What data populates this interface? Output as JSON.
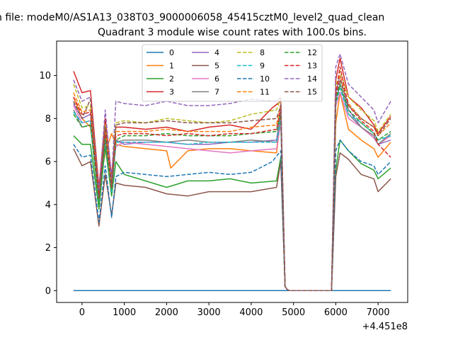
{
  "chart_data": {
    "type": "line",
    "suptitle": "n file: modeM0/AS1A13_038T03_9000006058_45415cztM0_level2_quad_clean",
    "title": "Quadrant 3 module wise count rates with 100.0s bins.",
    "xlabel": "",
    "ylabel": "",
    "x_offset_label": "+4.451e8",
    "xlim": [
      -600,
      7700
    ],
    "ylim": [
      -0.55,
      11.6
    ],
    "xticks": [
      0,
      1000,
      2000,
      3000,
      4000,
      5000,
      6000,
      7000
    ],
    "yticks": [
      0,
      2,
      4,
      6,
      8,
      10
    ],
    "grid": false,
    "legend": {
      "placement": "top-center",
      "columns": 4
    },
    "series": [
      {
        "name": "0",
        "color": "#1f77b4",
        "dash": "solid",
        "x": [
          -200,
          7300
        ],
        "y": [
          0,
          0
        ]
      },
      {
        "name": "1",
        "color": "#ff7f0e",
        "dash": "solid",
        "x": [
          -200,
          0,
          200,
          400,
          550,
          700,
          800,
          1000,
          1500,
          2000,
          2100,
          2500,
          3000,
          3500,
          4000,
          4600,
          4700,
          4800,
          4850,
          4900,
          5500,
          5900,
          6000,
          6100,
          6300,
          6600,
          6900,
          7000,
          7300
        ],
        "y": [
          9.0,
          8.0,
          7.6,
          4.8,
          6.4,
          7.3,
          6.8,
          6.7,
          6.6,
          6.5,
          5.7,
          6.5,
          6.6,
          6.6,
          6.5,
          6.4,
          8.0,
          0.2,
          0.05,
          0,
          0,
          0,
          7.8,
          9.2,
          7.5,
          7.0,
          6.6,
          6.2,
          6.9
        ]
      },
      {
        "name": "2",
        "color": "#2ca02c",
        "dash": "solid",
        "x": [
          -200,
          0,
          200,
          400,
          550,
          700,
          800,
          1000,
          1500,
          2000,
          2500,
          3000,
          3500,
          4000,
          4600,
          4700,
          4800,
          4850,
          4900,
          5500,
          5900,
          6000,
          6100,
          6300,
          6600,
          6900,
          7000,
          7300
        ],
        "y": [
          7.2,
          6.8,
          6.8,
          3.8,
          6.7,
          4.4,
          6.0,
          5.4,
          5.1,
          4.8,
          5.1,
          5.1,
          5.2,
          5.0,
          5.1,
          6.2,
          0.2,
          0.05,
          0,
          0,
          0,
          5.6,
          7.0,
          6.5,
          5.9,
          5.6,
          5.2,
          5.7
        ]
      },
      {
        "name": "3",
        "color": "#d62728",
        "dash": "solid",
        "x": [
          -200,
          0,
          200,
          400,
          550,
          700,
          800,
          1000,
          1500,
          2000,
          2500,
          3000,
          3500,
          4000,
          4500,
          4700,
          4800,
          4850,
          4900,
          5500,
          5900,
          6000,
          6100,
          6300,
          6600,
          6900,
          7000,
          7300
        ],
        "y": [
          10.2,
          9.2,
          9.3,
          4.8,
          8.0,
          5.3,
          7.6,
          7.6,
          7.5,
          7.6,
          7.4,
          7.6,
          7.7,
          7.5,
          8.5,
          8.8,
          0.2,
          0.05,
          0,
          0,
          0,
          9.8,
          10.8,
          9.0,
          8.5,
          7.7,
          7.3,
          8.1
        ]
      },
      {
        "name": "4",
        "color": "#9467bd",
        "dash": "solid",
        "x": [
          -200,
          0,
          200,
          400,
          550,
          700,
          800,
          1000,
          1500,
          2000,
          2500,
          3000,
          3500,
          4000,
          4600,
          4700,
          4800,
          4850,
          4900,
          5500,
          5900,
          6000,
          6100,
          6300,
          6600,
          6900,
          7000,
          7300
        ],
        "y": [
          8.7,
          8.0,
          8.2,
          4.2,
          7.0,
          4.8,
          7.0,
          6.8,
          6.9,
          6.9,
          6.8,
          6.8,
          6.9,
          6.9,
          7.0,
          8.4,
          0.2,
          0.05,
          0,
          0,
          0,
          9.2,
          10.0,
          8.4,
          7.6,
          7.1,
          6.8,
          7.0
        ]
      },
      {
        "name": "5",
        "color": "#8c564b",
        "dash": "solid",
        "x": [
          -200,
          0,
          200,
          400,
          550,
          700,
          800,
          1000,
          1500,
          2000,
          2500,
          3000,
          3500,
          4000,
          4600,
          4700,
          4800,
          4850,
          4900,
          5500,
          5900,
          6000,
          6100,
          6300,
          6600,
          6900,
          7000,
          7300
        ],
        "y": [
          6.6,
          5.8,
          6.0,
          3.0,
          5.4,
          3.5,
          5.0,
          4.9,
          4.8,
          4.5,
          4.4,
          4.6,
          4.6,
          4.6,
          4.8,
          6.0,
          0.2,
          0.05,
          0,
          0,
          0,
          5.3,
          6.4,
          6.1,
          5.4,
          5.2,
          4.6,
          5.2
        ]
      },
      {
        "name": "6",
        "color": "#e377c2",
        "dash": "solid",
        "x": [
          -200,
          0,
          200,
          400,
          550,
          700,
          800,
          1000,
          1500,
          2000,
          2500,
          3000,
          3500,
          4000,
          4600,
          4700,
          4800,
          4850,
          4900,
          5500,
          5900,
          6000,
          6100,
          6300,
          6600,
          6900,
          7000,
          7300
        ],
        "y": [
          8.6,
          7.8,
          7.9,
          4.2,
          7.4,
          4.8,
          6.7,
          6.9,
          6.8,
          6.7,
          6.6,
          6.5,
          6.4,
          6.5,
          6.6,
          7.8,
          0.2,
          0.05,
          0,
          0,
          0,
          8.6,
          9.2,
          8.0,
          7.6,
          7.1,
          6.8,
          7.2
        ]
      },
      {
        "name": "7",
        "color": "#7f7f7f",
        "dash": "solid",
        "x": [
          -200,
          0,
          200,
          400,
          550,
          700,
          800,
          1000,
          1500,
          2000,
          2500,
          3000,
          3500,
          4000,
          4600,
          4700,
          4800,
          4850,
          4900,
          5500,
          5900,
          6000,
          6100,
          6300,
          6600,
          6900,
          7000,
          7300
        ],
        "y": [
          8.4,
          7.6,
          7.7,
          4.0,
          7.2,
          4.6,
          6.9,
          7.0,
          7.0,
          6.9,
          7.0,
          6.9,
          6.9,
          7.0,
          6.9,
          8.2,
          0.2,
          0.05,
          0,
          0,
          0,
          8.8,
          9.6,
          8.2,
          7.6,
          7.2,
          6.8,
          7.3
        ]
      },
      {
        "name": "8",
        "color": "#bcbd22",
        "dash": "dashed",
        "x": [
          -200,
          0,
          200,
          400,
          550,
          700,
          800,
          1000,
          1500,
          2000,
          2500,
          3000,
          3500,
          4000,
          4600,
          4700,
          4800,
          4850,
          4900,
          5500,
          5900,
          6000,
          6100,
          6300,
          6600,
          6900,
          7000,
          7300
        ],
        "y": [
          9.6,
          8.5,
          8.6,
          4.4,
          7.7,
          4.9,
          7.8,
          7.9,
          7.8,
          8.0,
          7.9,
          7.8,
          7.9,
          8.2,
          8.4,
          9.0,
          0.2,
          0.05,
          0,
          0,
          0,
          9.5,
          10.2,
          9.0,
          8.4,
          7.9,
          7.4,
          8.2
        ]
      },
      {
        "name": "9",
        "color": "#17becf",
        "dash": "dashed",
        "x": [
          -200,
          0,
          200,
          400,
          550,
          700,
          800,
          1000,
          1500,
          2000,
          2500,
          3000,
          3500,
          4000,
          4600,
          4700,
          4800,
          4850,
          4900,
          5500,
          5900,
          6000,
          6100,
          6300,
          6600,
          6900,
          7000,
          7300
        ],
        "y": [
          8.3,
          7.8,
          7.9,
          4.1,
          7.0,
          4.6,
          6.9,
          6.9,
          6.9,
          6.9,
          6.8,
          6.9,
          6.9,
          6.9,
          6.9,
          7.9,
          0.2,
          0.05,
          0,
          0,
          0,
          8.7,
          9.4,
          8.2,
          7.8,
          7.3,
          7.0,
          7.2
        ]
      },
      {
        "name": "10",
        "color": "#1f77b4",
        "dash": "dashed",
        "x": [
          -200,
          0,
          200,
          400,
          550,
          700,
          800,
          1000,
          1500,
          2000,
          2500,
          3000,
          3500,
          4000,
          4500,
          4700,
          4800,
          4850,
          4900,
          5500,
          5900,
          6000,
          6100,
          6300,
          6600,
          6900,
          7000,
          7300
        ],
        "y": [
          6.8,
          6.2,
          6.3,
          3.2,
          5.8,
          3.4,
          5.3,
          5.5,
          5.4,
          5.3,
          5.4,
          5.5,
          5.4,
          5.5,
          6.0,
          6.5,
          0.2,
          0.05,
          0,
          0,
          0,
          6.5,
          7.0,
          6.5,
          6.0,
          5.8,
          5.4,
          6.0
        ]
      },
      {
        "name": "11",
        "color": "#ff7f0e",
        "dash": "dashed",
        "x": [
          -200,
          0,
          200,
          400,
          550,
          700,
          800,
          1000,
          1500,
          2000,
          2500,
          3000,
          3500,
          4000,
          4600,
          4700,
          4800,
          4850,
          4900,
          5500,
          5900,
          6000,
          6100,
          6300,
          6600,
          6900,
          7000,
          7300
        ],
        "y": [
          9.2,
          8.3,
          8.4,
          4.3,
          7.5,
          4.8,
          7.4,
          7.4,
          7.4,
          7.5,
          7.4,
          7.4,
          7.4,
          7.6,
          7.7,
          8.7,
          0.2,
          0.05,
          0,
          0,
          0,
          9.3,
          10.0,
          8.7,
          8.0,
          7.6,
          7.2,
          7.8
        ]
      },
      {
        "name": "12",
        "color": "#2ca02c",
        "dash": "dashed",
        "x": [
          -200,
          0,
          200,
          400,
          550,
          700,
          800,
          1000,
          1500,
          2000,
          2500,
          3000,
          3500,
          4000,
          4600,
          4700,
          4800,
          4850,
          4900,
          5500,
          5900,
          6000,
          6100,
          6300,
          6600,
          6900,
          7000,
          7300
        ],
        "y": [
          8.2,
          7.6,
          7.7,
          4.0,
          7.1,
          4.7,
          7.0,
          7.2,
          7.2,
          7.3,
          7.2,
          7.2,
          7.2,
          7.3,
          7.4,
          8.3,
          0.2,
          0.05,
          0,
          0,
          0,
          8.8,
          9.6,
          8.4,
          7.8,
          7.3,
          7.0,
          7.4
        ]
      },
      {
        "name": "13",
        "color": "#d62728",
        "dash": "dashed",
        "x": [
          -200,
          0,
          200,
          400,
          550,
          700,
          800,
          1000,
          1500,
          2000,
          2500,
          3000,
          3500,
          4000,
          4600,
          4700,
          4800,
          4850,
          4900,
          5500,
          5900,
          6000,
          6100,
          6300,
          6600,
          6900,
          7000,
          7300
        ],
        "y": [
          9.0,
          8.2,
          8.3,
          4.3,
          7.4,
          4.8,
          7.2,
          7.3,
          7.3,
          7.2,
          7.3,
          7.2,
          7.3,
          7.3,
          7.5,
          8.5,
          0.2,
          0.05,
          0,
          0,
          0,
          9.1,
          10.4,
          8.6,
          7.9,
          7.4,
          6.8,
          6.2
        ]
      },
      {
        "name": "14",
        "color": "#9467bd",
        "dash": "dashed",
        "x": [
          -200,
          0,
          200,
          400,
          550,
          700,
          800,
          1000,
          1500,
          2000,
          2500,
          3000,
          3500,
          4000,
          4600,
          4700,
          4800,
          4850,
          4900,
          5500,
          5900,
          6000,
          6100,
          6300,
          6600,
          6900,
          7000,
          7300
        ],
        "y": [
          9.8,
          8.8,
          9.0,
          4.6,
          8.4,
          5.2,
          8.8,
          8.7,
          8.6,
          8.8,
          8.6,
          8.6,
          8.7,
          8.9,
          8.8,
          9.0,
          0.2,
          0.05,
          0,
          0,
          0,
          10.4,
          11.0,
          9.6,
          9.0,
          8.4,
          7.8,
          8.8
        ]
      },
      {
        "name": "15",
        "color": "#8c564b",
        "dash": "dashed",
        "x": [
          -200,
          0,
          200,
          400,
          550,
          700,
          800,
          1000,
          1500,
          2000,
          2500,
          3000,
          3500,
          4000,
          4600,
          4700,
          4800,
          4850,
          4900,
          5500,
          5900,
          6000,
          6100,
          6300,
          6600,
          6900,
          7000,
          7300
        ],
        "y": [
          8.8,
          8.0,
          8.9,
          4.3,
          7.6,
          4.9,
          7.7,
          7.8,
          7.8,
          7.9,
          7.8,
          7.8,
          7.8,
          7.9,
          8.0,
          8.6,
          0.2,
          0.05,
          0,
          0,
          0,
          9.0,
          9.8,
          8.6,
          8.0,
          7.6,
          7.2,
          8.0
        ]
      }
    ]
  }
}
